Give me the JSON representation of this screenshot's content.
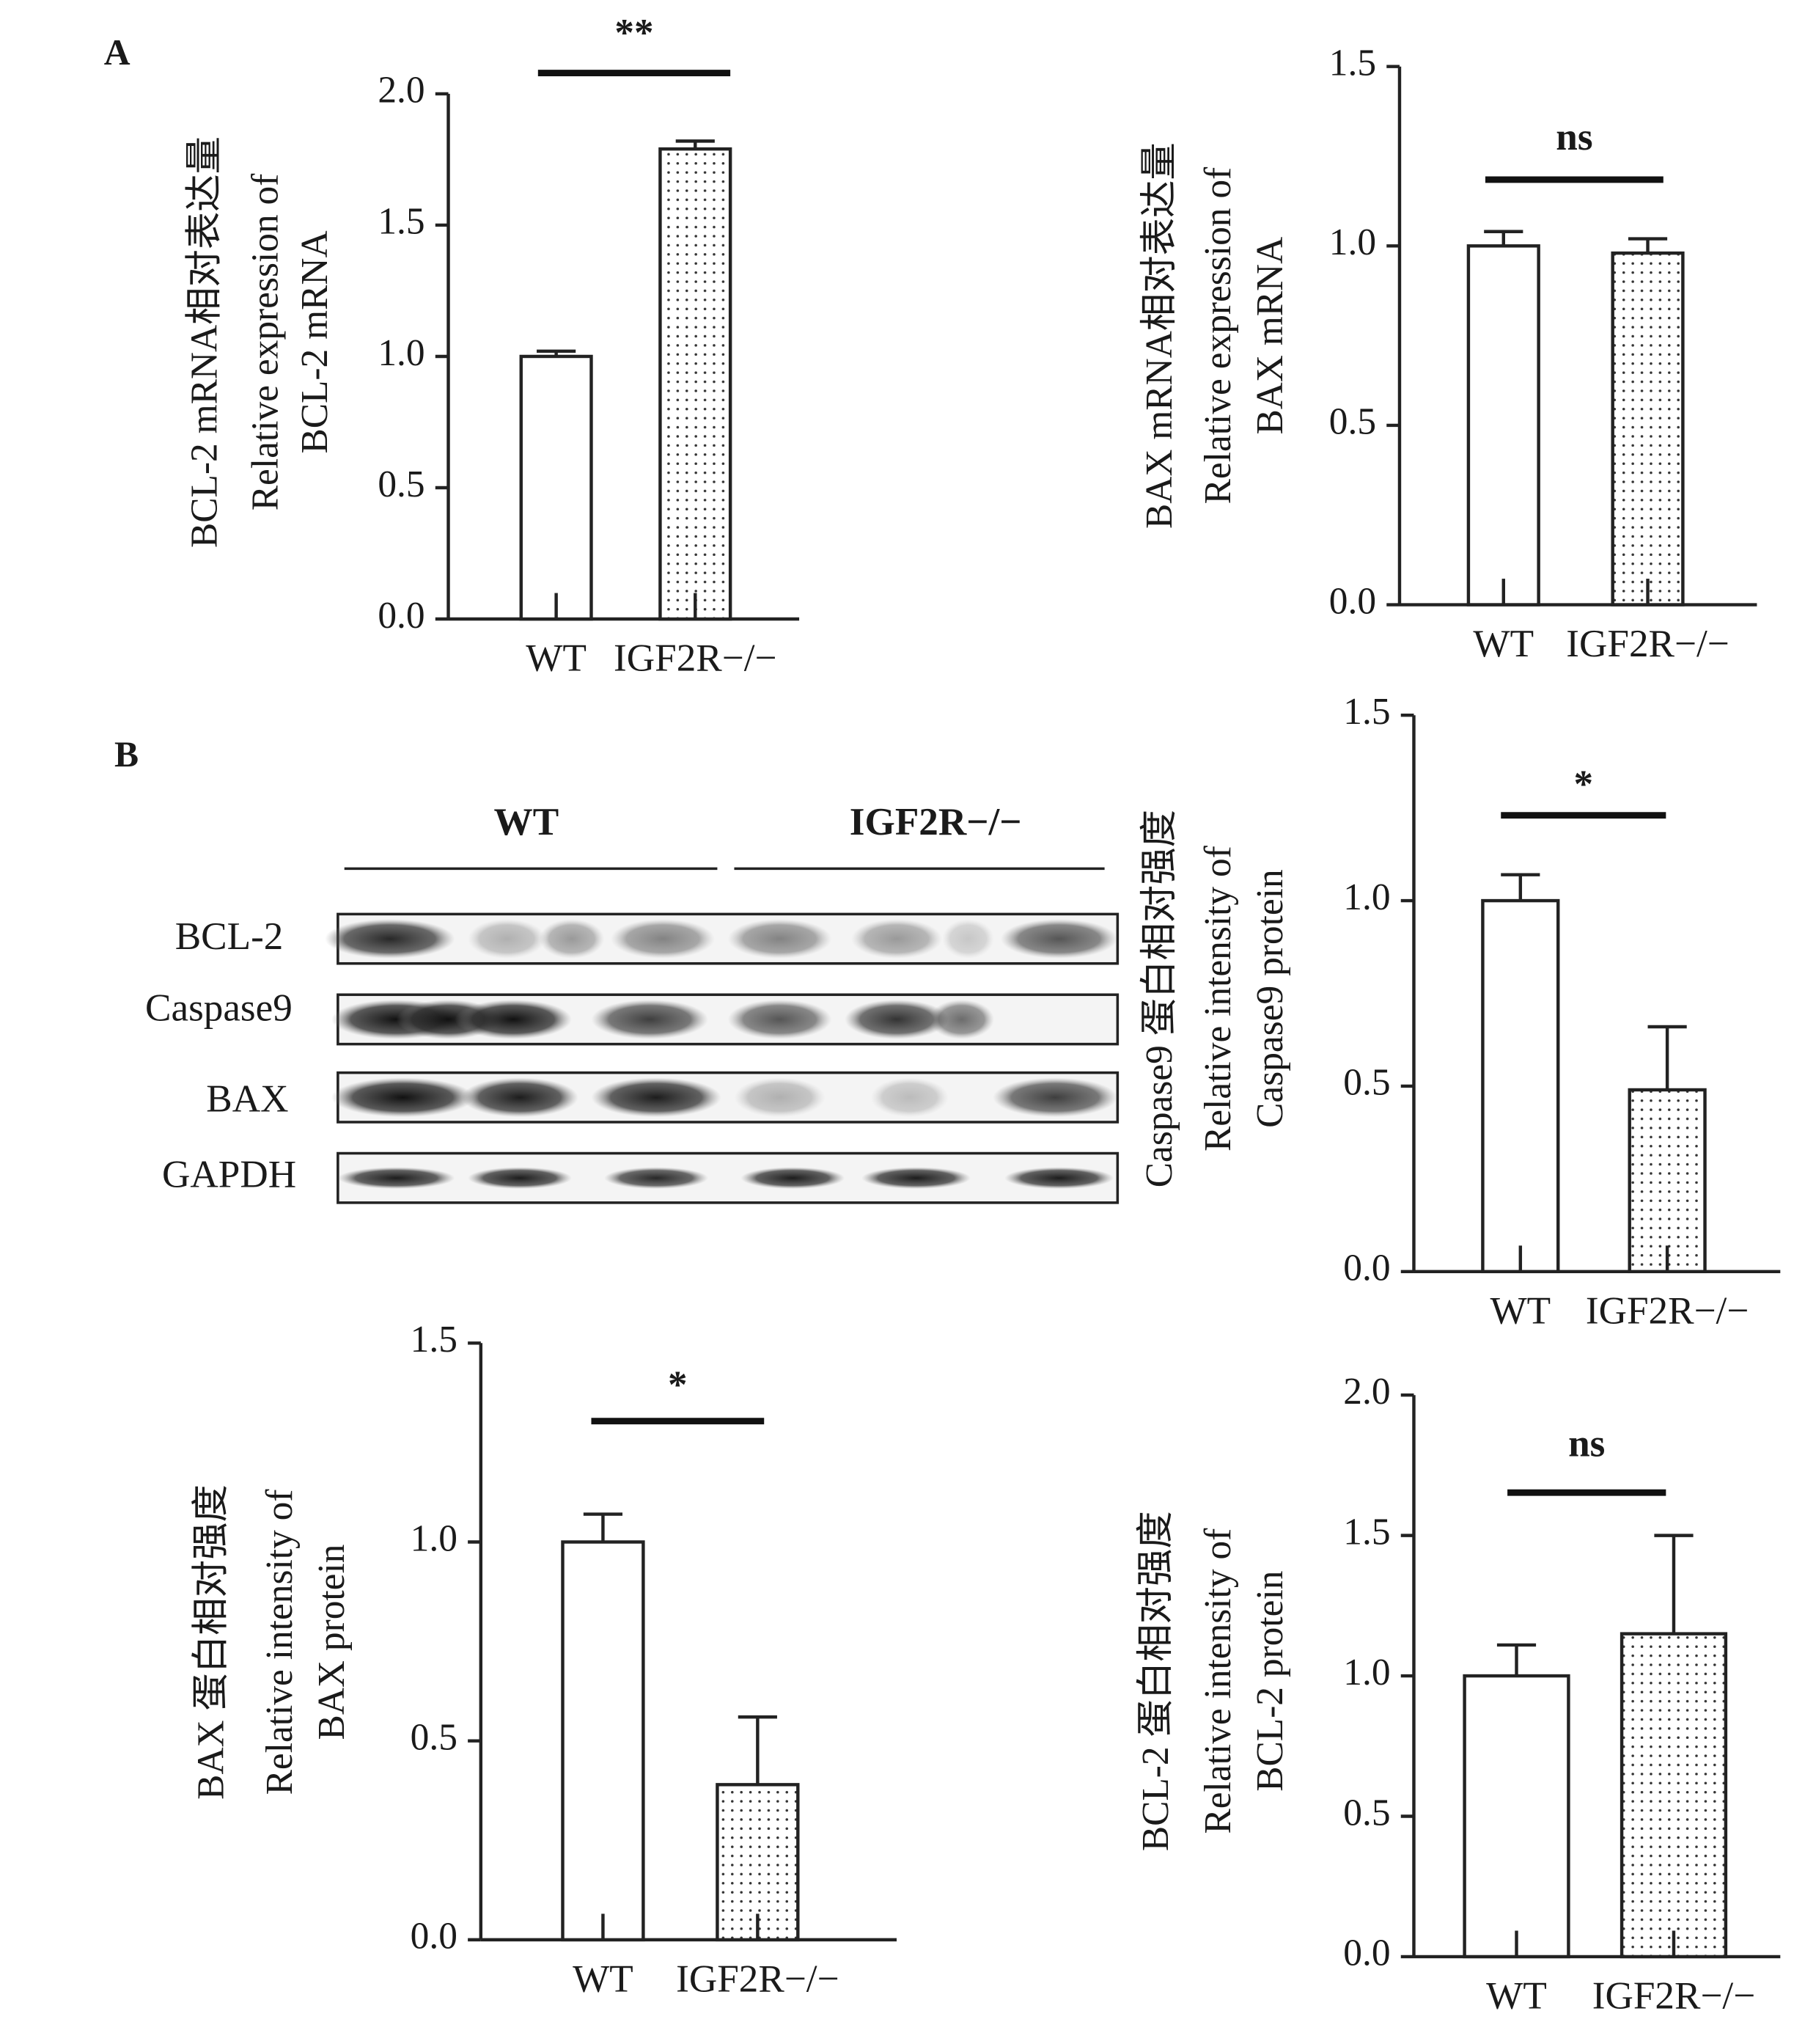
{
  "panel_labels": [
    "A",
    "B"
  ],
  "blot": {
    "groups": [
      "WT",
      "IGF2R−/−"
    ],
    "rows": [
      "BCL-2",
      "Caspase9",
      "BAX",
      "GAPDH"
    ]
  },
  "chart_data": [
    {
      "type": "bar",
      "ylabel": [
        "BCL-2 mRNA相对表达量",
        "Relative expression of",
        "BCL-2 mRNA"
      ],
      "categories": [
        "WT",
        "IGF2R−/−"
      ],
      "values": [
        1.0,
        1.79
      ],
      "errors": [
        0.02,
        0.03
      ],
      "patterns": [
        "none",
        "dots"
      ],
      "ylim": [
        0,
        2
      ],
      "yticks": [
        {
          "value": 0,
          "label": "0.0"
        },
        0.5,
        {
          "value": 1,
          "label": "1.0"
        },
        1.5,
        {
          "value": 2,
          "label": "2.0"
        }
      ],
      "annotation": "**"
    },
    {
      "type": "bar",
      "ylabel": [
        "BAX mRNA相对表达量",
        "Relative expression of",
        "BAX mRNA"
      ],
      "categories": [
        "WT",
        "IGF2R−/−"
      ],
      "values": [
        1.0,
        0.98
      ],
      "errors": [
        0.04,
        0.04
      ],
      "patterns": [
        "none",
        "dots"
      ],
      "ylim": [
        0,
        1.5
      ],
      "yticks": [
        {
          "value": 0,
          "label": "0.0"
        },
        0.5,
        {
          "value": 1,
          "label": "1.0"
        },
        1.5
      ],
      "annotation": "ns"
    },
    {
      "type": "bar",
      "ylabel": [
        "Caspase9 蛋白相对强度",
        "Relative intensity of",
        "Caspase9 protein"
      ],
      "categories": [
        "WT",
        "IGF2R−/−"
      ],
      "values": [
        1.0,
        0.49
      ],
      "errors": [
        0.07,
        0.17
      ],
      "patterns": [
        "none",
        "dots"
      ],
      "ylim": [
        0,
        1.5
      ],
      "yticks": [
        {
          "value": 0,
          "label": "0.0"
        },
        0.5,
        {
          "value": 1,
          "label": "1.0"
        },
        1.5
      ],
      "annotation": "*"
    },
    {
      "type": "bar",
      "ylabel": [
        "BAX 蛋白相对强度",
        "Relative intensity of",
        "BAX protein"
      ],
      "categories": [
        "WT",
        "IGF2R−/−"
      ],
      "values": [
        1.0,
        0.39
      ],
      "errors": [
        0.07,
        0.17
      ],
      "patterns": [
        "none",
        "dots"
      ],
      "ylim": [
        0,
        1.5
      ],
      "yticks": [
        {
          "value": 0,
          "label": "0.0"
        },
        0.5,
        {
          "value": 1,
          "label": "1.0"
        },
        1.5
      ],
      "annotation": "*"
    },
    {
      "type": "bar",
      "ylabel": [
        "BCL-2 蛋白相对强度",
        "Relative intensity of",
        "BCL-2 protein"
      ],
      "categories": [
        "WT",
        "IGF2R−/−"
      ],
      "values": [
        1.0,
        1.15
      ],
      "errors": [
        0.11,
        0.35
      ],
      "patterns": [
        "none",
        "dots"
      ],
      "ylim": [
        0,
        2
      ],
      "yticks": [
        {
          "value": 0,
          "label": "0.0"
        },
        0.5,
        {
          "value": 1,
          "label": "1.0"
        },
        1.5,
        {
          "value": 2,
          "label": "2.0"
        }
      ],
      "annotation": "ns"
    }
  ]
}
